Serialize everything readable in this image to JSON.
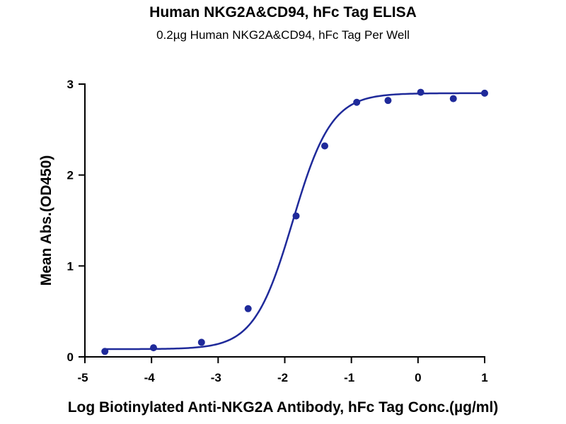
{
  "chart_data": {
    "type": "scatter",
    "title": "Human NKG2A&CD94, hFc Tag ELISA",
    "subtitle": "0.2µg Human NKG2A&CD94, hFc Tag Per Well",
    "xlabel": "Log Biotinylated Anti-NKG2A Antibody, hFc Tag Conc.(µg/ml)",
    "ylabel": "Mean Abs.(OD450)",
    "xlim": [
      -5,
      1
    ],
    "ylim": [
      0,
      3
    ],
    "x_ticks": [
      "-5",
      "-4",
      "-3",
      "-2",
      "-1",
      "0",
      "1"
    ],
    "y_ticks": [
      "0",
      "1",
      "2",
      "3"
    ],
    "grid": false,
    "color": "#1f2a9a",
    "points": [
      {
        "x": -4.7,
        "y": 0.06
      },
      {
        "x": -3.97,
        "y": 0.1
      },
      {
        "x": -3.25,
        "y": 0.16
      },
      {
        "x": -2.55,
        "y": 0.53
      },
      {
        "x": -1.83,
        "y": 1.55
      },
      {
        "x": -1.4,
        "y": 2.32
      },
      {
        "x": -0.92,
        "y": 2.8
      },
      {
        "x": -0.45,
        "y": 2.82
      },
      {
        "x": 0.04,
        "y": 2.91
      },
      {
        "x": 0.53,
        "y": 2.84
      },
      {
        "x": 1.0,
        "y": 2.9
      }
    ],
    "fit_curve": {
      "model": "4PL",
      "bottom": 0.085,
      "top": 2.9,
      "logEC50": -1.88,
      "hill_slope": 1.5
    }
  }
}
